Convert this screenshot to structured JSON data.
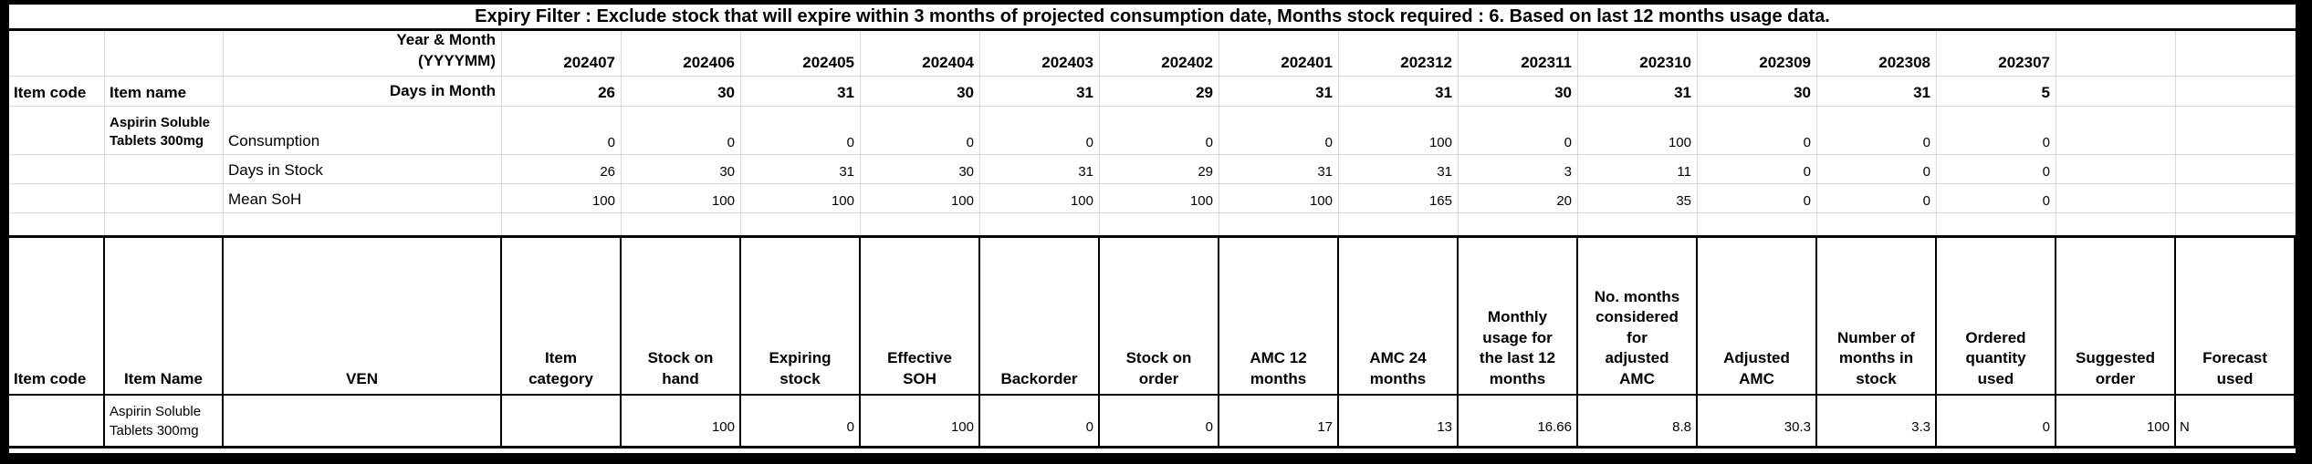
{
  "colors": {
    "frame": "#000000",
    "sheet_background": "#ffffff",
    "gridline": "#d9d9d9",
    "table_border": "#000000",
    "text": "#000000"
  },
  "title": "Expiry Filter : Exclude stock that will expire within 3 months of projected consumption date, Months stock required : 6. Based on last 12 months usage data.",
  "monthly_table": {
    "item_code_label": "Item code",
    "item_name_label": "Item name",
    "year_month_label": "Year & Month\n(YYYYMM)",
    "days_in_month_label": "Days in Month",
    "item_name": "Aspirin Soluble Tablets 300mg",
    "months": [
      "202407",
      "202406",
      "202405",
      "202404",
      "202403",
      "202402",
      "202401",
      "202312",
      "202311",
      "202310",
      "202309",
      "202308",
      "202307"
    ],
    "days_in_month": [
      26,
      30,
      31,
      30,
      31,
      29,
      31,
      31,
      30,
      31,
      30,
      31,
      5
    ],
    "rows": [
      {
        "label": "Consumption",
        "values": [
          0,
          0,
          0,
          0,
          0,
          0,
          0,
          100,
          0,
          100,
          0,
          0,
          0
        ]
      },
      {
        "label": "Days in Stock",
        "values": [
          26,
          30,
          31,
          30,
          31,
          29,
          31,
          31,
          3,
          11,
          0,
          0,
          0
        ]
      },
      {
        "label": "Mean SoH",
        "values": [
          100,
          100,
          100,
          100,
          100,
          100,
          100,
          165,
          20,
          35,
          0,
          0,
          0
        ]
      }
    ]
  },
  "summary_table": {
    "headers": [
      "Item code",
      "Item Name",
      "VEN",
      "Item\ncategory",
      "Stock on\nhand",
      "Expiring\nstock",
      "Effective\nSOH",
      "Backorder",
      "Stock on\norder",
      "AMC 12\nmonths",
      "AMC 24\nmonths",
      "Monthly\nusage for\nthe last 12\nmonths",
      "No. months\nconsidered\nfor\nadjusted\nAMC",
      "Adjusted\nAMC",
      "Number of\nmonths in\nstock",
      "Ordered\nquantity\nused",
      "Suggested\norder",
      "Forecast\nused"
    ],
    "values": [
      "",
      "Aspirin Soluble Tablets 300mg",
      "",
      "",
      "100",
      "0",
      "100",
      "0",
      "0",
      "17",
      "13",
      "16.66",
      "8.8",
      "30.3",
      "3.3",
      "0",
      "100",
      "N"
    ]
  }
}
